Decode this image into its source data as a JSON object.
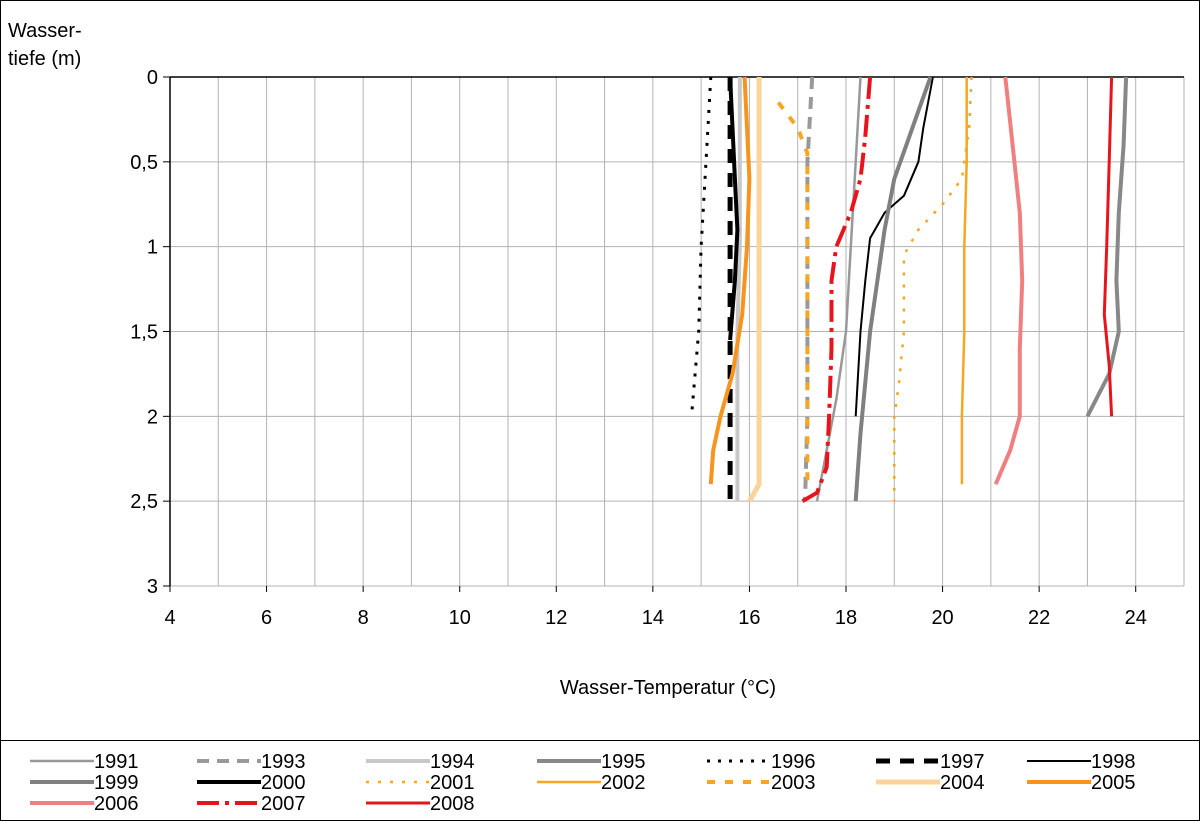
{
  "chart_data": {
    "type": "line",
    "title": "",
    "ylabel_lines": [
      "Wasser-",
      "tiefe (m)"
    ],
    "xlabel": "Wasser-Temperatur (°C)",
    "xlim": [
      4,
      25
    ],
    "ylim": [
      0,
      3
    ],
    "y_inverted": true,
    "x_ticks": [
      "4",
      "6",
      "8",
      "10",
      "12",
      "14",
      "16",
      "18",
      "20",
      "22",
      "24"
    ],
    "y_ticks": [
      "0",
      "0,5",
      "1",
      "1,5",
      "2",
      "2,5",
      "3"
    ],
    "grid": true,
    "legend_position": "bottom",
    "series": [
      {
        "name": "1991",
        "color": "#999999",
        "width": 2.5,
        "dash": "",
        "points": [
          [
            18.3,
            0
          ],
          [
            18.2,
            0.5
          ],
          [
            18.1,
            1
          ],
          [
            18.0,
            1.5
          ],
          [
            17.8,
            1.9
          ],
          [
            17.6,
            2.2
          ],
          [
            17.4,
            2.5
          ]
        ]
      },
      {
        "name": "1993",
        "color": "#999999",
        "width": 4,
        "dash": "12,8",
        "points": [
          [
            17.3,
            0
          ],
          [
            17.2,
            0.5
          ],
          [
            17.2,
            1
          ],
          [
            17.2,
            1.5
          ],
          [
            17.2,
            2.0
          ],
          [
            17.15,
            2.5
          ]
        ]
      },
      {
        "name": "1994",
        "color": "#c8c8c8",
        "width": 4,
        "dash": "",
        "points": [
          [
            15.8,
            0
          ],
          [
            15.8,
            0.5
          ],
          [
            15.8,
            1
          ],
          [
            15.75,
            1.5
          ],
          [
            15.75,
            2
          ],
          [
            15.75,
            2.5
          ]
        ]
      },
      {
        "name": "1995",
        "color": "#888888",
        "width": 4,
        "dash": "",
        "points": [
          [
            23.8,
            0
          ],
          [
            23.75,
            0.4
          ],
          [
            23.65,
            0.8
          ],
          [
            23.6,
            1.2
          ],
          [
            23.65,
            1.5
          ],
          [
            23.45,
            1.75
          ],
          [
            23.0,
            2.0
          ]
        ]
      },
      {
        "name": "1996",
        "color": "#000000",
        "width": 3,
        "dash": "3,8",
        "points": [
          [
            15.2,
            0
          ],
          [
            15.1,
            0.5
          ],
          [
            15.0,
            1
          ],
          [
            14.95,
            1.5
          ],
          [
            14.8,
            2.0
          ]
        ]
      },
      {
        "name": "1997",
        "color": "#000000",
        "width": 5,
        "dash": "14,10",
        "points": [
          [
            15.6,
            0
          ],
          [
            15.6,
            0.5
          ],
          [
            15.6,
            1
          ],
          [
            15.6,
            1.5
          ],
          [
            15.6,
            2
          ],
          [
            15.6,
            2.5
          ]
        ]
      },
      {
        "name": "1998",
        "color": "#000000",
        "width": 2,
        "dash": "",
        "points": [
          [
            19.8,
            0
          ],
          [
            19.6,
            0.3
          ],
          [
            19.5,
            0.5
          ],
          [
            19.2,
            0.7
          ],
          [
            18.8,
            0.8
          ],
          [
            18.5,
            0.95
          ],
          [
            18.4,
            1.2
          ],
          [
            18.3,
            1.5
          ],
          [
            18.2,
            2.0
          ]
        ]
      },
      {
        "name": "1999",
        "color": "#808080",
        "width": 4,
        "dash": "",
        "points": [
          [
            19.75,
            0
          ],
          [
            19.5,
            0.2
          ],
          [
            19.25,
            0.4
          ],
          [
            19.0,
            0.6
          ],
          [
            18.8,
            0.9
          ],
          [
            18.65,
            1.2
          ],
          [
            18.5,
            1.5
          ],
          [
            18.4,
            1.8
          ],
          [
            18.3,
            2.1
          ],
          [
            18.25,
            2.3
          ],
          [
            18.2,
            2.5
          ]
        ]
      },
      {
        "name": "2000",
        "color": "#000000",
        "width": 4,
        "dash": "",
        "points": [
          [
            15.6,
            0
          ],
          [
            15.65,
            0.3
          ],
          [
            15.7,
            0.6
          ],
          [
            15.75,
            0.9
          ],
          [
            15.7,
            1.2
          ],
          [
            15.6,
            1.55
          ]
        ]
      },
      {
        "name": "2001",
        "color": "#f5a623",
        "width": 2.5,
        "dash": "3,9",
        "points": [
          [
            20.6,
            0
          ],
          [
            20.55,
            0.3
          ],
          [
            20.4,
            0.6
          ],
          [
            20.0,
            0.75
          ],
          [
            19.5,
            0.9
          ],
          [
            19.2,
            1.05
          ],
          [
            19.2,
            1.5
          ],
          [
            19.1,
            1.8
          ],
          [
            19.0,
            2.0
          ],
          [
            19.0,
            2.5
          ]
        ]
      },
      {
        "name": "2002",
        "color": "#f5a623",
        "width": 2.5,
        "dash": "",
        "points": [
          [
            20.5,
            0
          ],
          [
            20.5,
            0.5
          ],
          [
            20.45,
            1
          ],
          [
            20.45,
            1.5
          ],
          [
            20.4,
            2
          ],
          [
            20.4,
            2.4
          ]
        ]
      },
      {
        "name": "2003",
        "color": "#f5a623",
        "width": 4,
        "dash": "8,10",
        "points": [
          [
            16.6,
            0.15
          ],
          [
            17.0,
            0.3
          ],
          [
            17.2,
            0.45
          ],
          [
            17.2,
            0.55
          ],
          [
            17.2,
            1
          ],
          [
            17.2,
            1.5
          ],
          [
            17.2,
            2
          ],
          [
            17.2,
            2.4
          ]
        ]
      },
      {
        "name": "2004",
        "color": "#fcd39a",
        "width": 5,
        "dash": "",
        "points": [
          [
            16.2,
            0
          ],
          [
            16.2,
            0.5
          ],
          [
            16.2,
            1
          ],
          [
            16.2,
            1.5
          ],
          [
            16.2,
            2
          ],
          [
            16.2,
            2.4
          ],
          [
            16.0,
            2.5
          ]
        ]
      },
      {
        "name": "2005",
        "color": "#f7941d",
        "width": 4,
        "dash": "",
        "points": [
          [
            15.9,
            0
          ],
          [
            15.95,
            0.3
          ],
          [
            16.0,
            0.6
          ],
          [
            15.95,
            1.0
          ],
          [
            15.85,
            1.4
          ],
          [
            15.65,
            1.75
          ],
          [
            15.4,
            2.0
          ],
          [
            15.25,
            2.2
          ],
          [
            15.2,
            2.4
          ]
        ]
      },
      {
        "name": "2006",
        "color": "#f08080",
        "width": 4,
        "dash": "",
        "points": [
          [
            21.3,
            0
          ],
          [
            21.45,
            0.4
          ],
          [
            21.6,
            0.8
          ],
          [
            21.65,
            1.2
          ],
          [
            21.6,
            1.6
          ],
          [
            21.6,
            2.0
          ],
          [
            21.4,
            2.2
          ],
          [
            21.1,
            2.4
          ]
        ]
      },
      {
        "name": "2007",
        "color": "#e8141c",
        "width": 4,
        "dash": "22,6,4,6",
        "points": [
          [
            18.5,
            0
          ],
          [
            18.4,
            0.35
          ],
          [
            18.3,
            0.6
          ],
          [
            18.1,
            0.8
          ],
          [
            17.8,
            1.0
          ],
          [
            17.7,
            1.2
          ],
          [
            17.7,
            1.6
          ],
          [
            17.65,
            2.0
          ],
          [
            17.6,
            2.3
          ],
          [
            17.4,
            2.45
          ],
          [
            17.1,
            2.5
          ]
        ]
      },
      {
        "name": "2008",
        "color": "#e8141c",
        "width": 3,
        "dash": "",
        "points": [
          [
            23.5,
            0
          ],
          [
            23.45,
            0.5
          ],
          [
            23.4,
            1.0
          ],
          [
            23.35,
            1.4
          ],
          [
            23.45,
            1.7
          ],
          [
            23.5,
            2.0
          ]
        ]
      }
    ]
  }
}
